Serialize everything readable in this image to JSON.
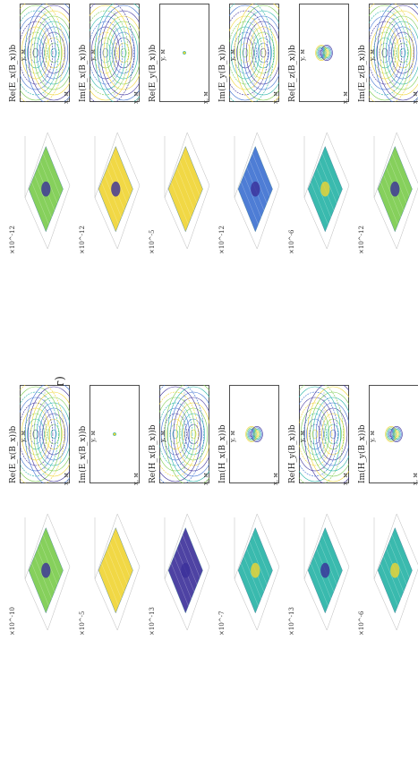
{
  "sheet_label": "(г)",
  "axis_labels": {
    "x": "x, м",
    "y": "y, м"
  },
  "columns": [
    {
      "contour_title": "Re(E_x(B_x))b",
      "surface_scale": "×10^-12",
      "kind": "broad"
    },
    {
      "contour_title": "Im(E_x(B_x))b",
      "surface_scale": "×10^-12",
      "kind": "broad"
    },
    {
      "contour_title": "Re(E_y(B_x))b",
      "surface_scale": "×10^-5",
      "kind": "point"
    },
    {
      "contour_title": "Im(E_y(B_x))b",
      "surface_scale": "×10^-12",
      "kind": "broad"
    },
    {
      "contour_title": "Re(E_z(B_x))b",
      "surface_scale": "×10^-6",
      "kind": "small"
    },
    {
      "contour_title": "Im(E_z(B_x))b",
      "surface_scale": "×10^-12",
      "kind": "broad"
    }
  ],
  "columns_bottom": [
    {
      "contour_title": "Re(E_x(B_x))b",
      "surface_scale": "×10^-10",
      "kind": "broad"
    },
    {
      "contour_title": "Im(E_x(B_x))b",
      "surface_scale": "×10^-5",
      "kind": "point"
    },
    {
      "contour_title": "Re(H_x(B_x))b",
      "surface_scale": "×10^-13",
      "kind": "broad"
    },
    {
      "contour_title": "Im(H_x(B_x))b",
      "surface_scale": "×10^-7",
      "kind": "small"
    },
    {
      "contour_title": "Re(H_y(B_x))b",
      "surface_scale": "×10^-13",
      "kind": "broad"
    },
    {
      "contour_title": "Im(H_y(B_x))b",
      "surface_scale": "×10^-6",
      "kind": "small"
    }
  ],
  "colors": {
    "deep": "#3b2f9a",
    "blue": "#3b6fd1",
    "teal": "#25b3a6",
    "green": "#7acb4b",
    "yellow": "#f0d431"
  }
}
